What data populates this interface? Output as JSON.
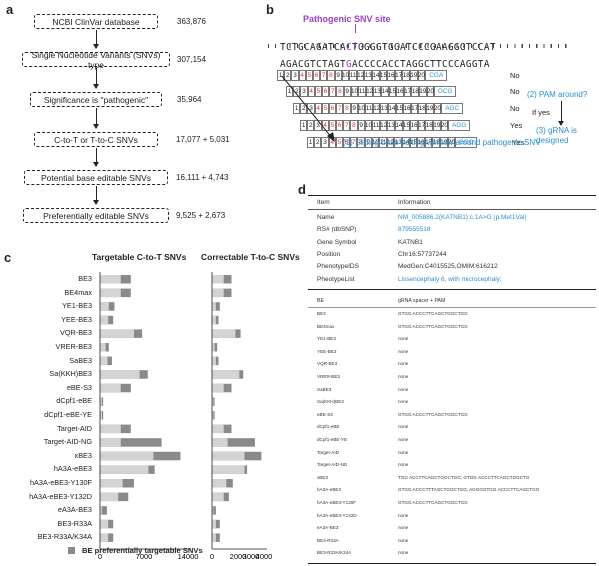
{
  "panel_a": {
    "letter": "a",
    "steps": [
      {
        "label": "NCBI ClinVar database",
        "count": "363,876"
      },
      {
        "label": "Single Nucleotide Variants (SNVs) type",
        "count": "307,154"
      },
      {
        "label": "Significance is \"pathogenic\"",
        "count": "35,964"
      },
      {
        "label": "C-to-T or T-to-C SNVs",
        "count": "17,077 + 5,031"
      },
      {
        "label": "Potential base editable SNVs",
        "count": "16,111 + 4,743"
      },
      {
        "label": "Preferentially editable SNVs",
        "count": "9,525 + 2,673"
      }
    ]
  },
  "panel_b": {
    "letter": "b",
    "site_label": "Pathogenic SNV site",
    "top_strand_left": "TCTGCAGATCA",
    "top_strand_mut": "C",
    "top_strand_right": "TGGGGTGGATCCCGAAGGGTCCAT",
    "bottom_strand_left": "AGACGTCTAGT",
    "bottom_strand_mut": "G",
    "bottom_strand_right": "ACCCCACCTAGGCTTCCCAGGTA",
    "windows": [
      {
        "pam": "CGA",
        "result": "No"
      },
      {
        "pam": "GCG",
        "result": "No"
      },
      {
        "pam": "AGC",
        "result": "No"
      },
      {
        "pam": "AGG",
        "result": "Yes"
      },
      {
        "pam": "GGG",
        "result": "Yes"
      }
    ],
    "note_pam": "(2) PAM around?",
    "note_ifyes": "If yes",
    "note_grna": "(3) gRNA is designed",
    "note_slide": "(1) Sliding base editing window around pathogenic SNV"
  },
  "panel_c": {
    "letter": "c",
    "legend": "BE preferentially targetable SNVs",
    "colors": {
      "light": "#d4d4d4",
      "dark": "#8a8a8a"
    }
  },
  "panel_d": {
    "letter": "d",
    "header_item": "Item",
    "header_info": "Information",
    "info_rows": [
      {
        "k": "Name",
        "v": "NM_005886.2(KATNB1):c.1A>G (p.Met1Val)",
        "link": true
      },
      {
        "k": "RS# (dbSNP)",
        "v": "879555518",
        "link": true
      },
      {
        "k": "Gene Symbol",
        "v": "KATNB1",
        "link": false
      },
      {
        "k": "Position",
        "v": "Chr16:57737244",
        "link": false
      },
      {
        "k": "PhenotypeIDS",
        "v": "MedGen:C4015525,OMIM:616212",
        "link": false
      },
      {
        "k": "PheotypeList",
        "v": "Lissencephaly 6, with microcephaly;",
        "link": true
      }
    ],
    "be_header": "BE",
    "grna_header": "gRNA spacer + PAM",
    "be_rows": [
      {
        "be": "BE3",
        "g": "GTGG  ACCCTTCAGCTGGCTGG"
      },
      {
        "be": "BE4max",
        "g": "GTGG  ACCCTTCAGCTGGCTGG"
      },
      {
        "be": "YE1-BE3",
        "g": "none"
      },
      {
        "be": "YEE-BE3",
        "g": "none"
      },
      {
        "be": "VQR-BE3",
        "g": "none"
      },
      {
        "be": "VRER-BE3",
        "g": "none"
      },
      {
        "be": "SaBE3",
        "g": "none"
      },
      {
        "be": "Sa(KKH)BE3",
        "g": "none"
      },
      {
        "be": "eBE-S3",
        "g": "GTGG  ACCCTTCAGCTGGCTGG"
      },
      {
        "be": "dCpf1-eBE",
        "g": "none"
      },
      {
        "be": "dCpf1-eBE-YE",
        "g": "none"
      },
      {
        "be": "Target-AID",
        "g": "none"
      },
      {
        "be": "Target-AID-NG",
        "g": "none"
      },
      {
        "be": "xBE3",
        "g": "TGG  ACCTTCAGCTGGCTGG; GTGG  ACCCTTCAGCTGGCTG"
      },
      {
        "be": "hA3A-eBE3",
        "g": "GTGG  ACCCTTTAGCTGGCTGG; AGGGGTGG  ACCCTTCAGCTGG"
      },
      {
        "be": "hA3A-eBE3-Y130F",
        "g": "GTGG  ACCCTTCAGCTGGCTGG"
      },
      {
        "be": "hA3A-eBE3-Y132D",
        "g": "none"
      },
      {
        "be": "eA3A-BE3",
        "g": "none"
      },
      {
        "be": "BE3-R33A",
        "g": "none"
      },
      {
        "be": "BE3-R33A/K34A",
        "g": "none"
      }
    ]
  },
  "chart_data": [
    {
      "type": "bar",
      "orientation": "horizontal",
      "title": "Targetable C-to-T SNVs",
      "categories": [
        "BE3",
        "BE4max",
        "YE1-BE3",
        "YEE-BE3",
        "VQR-BE3",
        "VRER-BE3",
        "SaBE3",
        "Sa(KKH)BE3",
        "eBE-S3",
        "dCpf1-eBE",
        "dCpf1-eBE-YE",
        "Target-AID",
        "Target-AID-NG",
        "xBE3",
        "hA3A-eBE3",
        "hA3A-eBE3-Y130F",
        "hA3A-eBE3-Y132D",
        "eA3A-BE3",
        "BE3-R33A",
        "BE3-R33A/K34A"
      ],
      "series": [
        {
          "name": "BE preferentially targetable SNVs",
          "values": [
            3300,
            3300,
            1400,
            1300,
            5400,
            900,
            1200,
            6300,
            3300,
            300,
            300,
            3300,
            3300,
            8500,
            7700,
            3600,
            2900,
            300,
            1300,
            1300
          ]
        },
        {
          "values": [
            4900,
            4900,
            2300,
            2100,
            6700,
            1400,
            1900,
            7600,
            4900,
            500,
            500,
            4900,
            9800,
            12800,
            8700,
            5400,
            4500,
            1100,
            2100,
            2100
          ]
        }
      ],
      "xticks": [
        "0",
        "7000",
        "14000"
      ],
      "xlim": [
        0,
        14000
      ]
    },
    {
      "type": "bar",
      "orientation": "horizontal",
      "title": "Correctable T-to-C SNVs",
      "categories": [
        "BE3",
        "BE4max",
        "YE1-BE3",
        "YEE-BE3",
        "VQR-BE3",
        "VRER-BE3",
        "SaBE3",
        "Sa(KKH)BE3",
        "eBE-S3",
        "dCpf1-eBE",
        "dCpf1-eBE-YE",
        "Target-AID",
        "Target-AID-NG",
        "xBE3",
        "hA3A-eBE3",
        "hA3A-eBE3-Y130F",
        "hA3A-eBE3-Y132D",
        "eA3A-BE3",
        "BE3-R33A",
        "BE3-R33A/K34A"
      ],
      "series": [
        {
          "name": "BE preferentially targetable SNVs",
          "values": [
            900,
            900,
            300,
            300,
            1800,
            200,
            300,
            2100,
            900,
            100,
            100,
            900,
            1200,
            2500,
            2500,
            1100,
            900,
            100,
            300,
            300
          ]
        },
        {
          "values": [
            1500,
            1500,
            600,
            500,
            2200,
            400,
            500,
            2400,
            1500,
            200,
            200,
            1500,
            3300,
            3800,
            2700,
            1600,
            1300,
            300,
            600,
            600
          ]
        }
      ],
      "xticks": [
        "0",
        "2000",
        "3000",
        "4000"
      ],
      "xtick_values": [
        0,
        2000,
        3000,
        4000
      ],
      "xlim": [
        0,
        4000
      ]
    }
  ]
}
